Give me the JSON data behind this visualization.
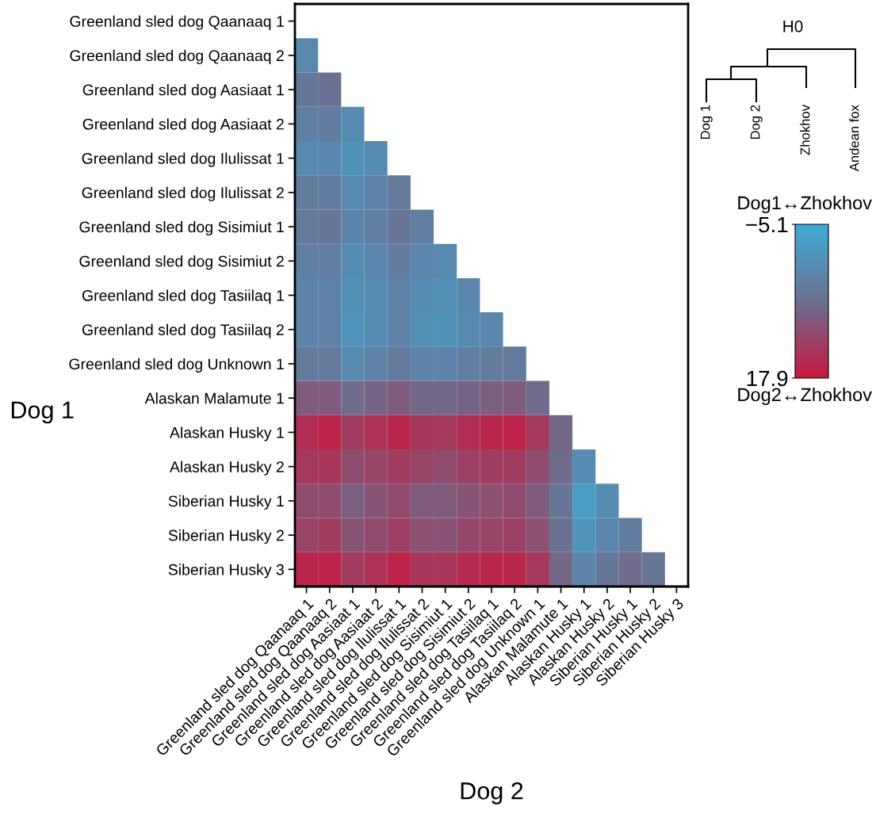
{
  "chart_data": {
    "type": "heatmap",
    "xlabel": "Dog 2",
    "ylabel": "Dog 1",
    "categories": [
      "Greenland sled dog Qaanaaq 1",
      "Greenland sled dog Qaanaaq 2",
      "Greenland sled dog Aasiaat 1",
      "Greenland sled dog Aasiaat 2",
      "Greenland sled dog Ilulissat 1",
      "Greenland sled dog Ilulissat 2",
      "Greenland sled dog Sisimiut 1",
      "Greenland sled dog Sisimiut 2",
      "Greenland sled dog Tasiilaq 1",
      "Greenland sled dog Tasiilaq 2",
      "Greenland sled dog Unknown 1",
      "Alaskan Malamute 1",
      "Alaskan Husky 1",
      "Alaskan Husky 2",
      "Siberian Husky 1",
      "Siberian Husky 2",
      "Siberian Husky 3"
    ],
    "y_categories": [
      "Greenland sled dog Qaanaaq 1",
      "Greenland sled dog Qaanaaq 2",
      "Greenland sled dog Aasiaat 1",
      "Greenland sled dog Aasiaat 2",
      "Greenland sled dog Ilulissat 1",
      "Greenland sled dog Ilulissat 2",
      "Greenland sled dog Sisimiut 1",
      "Greenland sled dog Sisimiut 2",
      "Greenland sled dog Tasiilaq 1",
      "Greenland sled dog Tasiilaq 2",
      "Greenland sled dog Unknown 1",
      "Alaskan Malamute 1",
      "Alaskan Husky 1",
      "Alaskan Husky 2",
      "Siberian Husky 1",
      "Siberian Husky 2",
      "Siberian Husky 3"
    ],
    "cells": [
      [
        null,
        null,
        null,
        null,
        null,
        null,
        null,
        null,
        null,
        null,
        null,
        null,
        null,
        null,
        null,
        null,
        null
      ],
      [
        1.5,
        null,
        null,
        null,
        null,
        null,
        null,
        null,
        null,
        null,
        null,
        null,
        null,
        null,
        null,
        null,
        null
      ],
      [
        5,
        6,
        null,
        null,
        null,
        null,
        null,
        null,
        null,
        null,
        null,
        null,
        null,
        null,
        null,
        null,
        null
      ],
      [
        3.5,
        4,
        1,
        null,
        null,
        null,
        null,
        null,
        null,
        null,
        null,
        null,
        null,
        null,
        null,
        null,
        null
      ],
      [
        1.5,
        2,
        0,
        1,
        null,
        null,
        null,
        null,
        null,
        null,
        null,
        null,
        null,
        null,
        null,
        null,
        null
      ],
      [
        4,
        4,
        1.5,
        2.5,
        4.5,
        null,
        null,
        null,
        null,
        null,
        null,
        null,
        null,
        null,
        null,
        null,
        null
      ],
      [
        4.5,
        5,
        2.5,
        3.5,
        5.5,
        3.5,
        null,
        null,
        null,
        null,
        null,
        null,
        null,
        null,
        null,
        null,
        null
      ],
      [
        3.5,
        3.5,
        1,
        2,
        4,
        2,
        1.5,
        null,
        null,
        null,
        null,
        null,
        null,
        null,
        null,
        null,
        null
      ],
      [
        2.5,
        3,
        0.5,
        1,
        3,
        1,
        0.5,
        2,
        null,
        null,
        null,
        null,
        null,
        null,
        null,
        null,
        null
      ],
      [
        2.5,
        3,
        -0.5,
        1,
        3,
        0.5,
        0,
        1.5,
        2,
        null,
        null,
        null,
        null,
        null,
        null,
        null,
        null
      ],
      [
        4.5,
        4.5,
        1.5,
        3,
        4.5,
        2.5,
        2.5,
        3.5,
        4,
        4.5,
        null,
        null,
        null,
        null,
        null,
        null,
        null
      ],
      [
        9,
        9,
        7,
        8,
        9,
        7.5,
        7.5,
        8,
        8.5,
        9,
        7,
        null,
        null,
        null,
        null,
        null,
        null
      ],
      [
        15,
        16.5,
        13,
        14.5,
        16,
        14,
        13.5,
        15,
        16,
        16.5,
        13.5,
        7.5,
        null,
        null,
        null,
        null,
        null
      ],
      [
        13.5,
        14,
        11,
        12,
        13,
        12,
        11,
        12.5,
        13,
        13,
        11,
        7,
        1,
        null,
        null,
        null,
        null
      ],
      [
        11,
        11,
        8.5,
        10,
        11,
        9,
        9,
        10,
        10.5,
        11,
        9,
        5.5,
        -2,
        1,
        null,
        null,
        null
      ],
      [
        12,
        13,
        10,
        11,
        12.5,
        10.5,
        10,
        11.5,
        12,
        12.5,
        10.5,
        6,
        -0.5,
        2,
        4,
        null,
        null
      ],
      [
        16,
        16.5,
        13,
        14.5,
        16.5,
        14,
        14,
        15.5,
        16,
        16,
        13.5,
        7.5,
        2.5,
        5,
        7,
        5.5,
        null
      ]
    ],
    "clim": [
      -5.1,
      17.9
    ],
    "cticks": [
      {
        "value": -5.1,
        "label": "−5.1"
      },
      17.9
    ],
    "annotations": [
      "H0",
      "Dog 1",
      "Dog 2",
      "Zhokhov",
      "Andean fox",
      "Dog1↔Zhokhov",
      "Dog2↔Zhokhov"
    ]
  }
}
